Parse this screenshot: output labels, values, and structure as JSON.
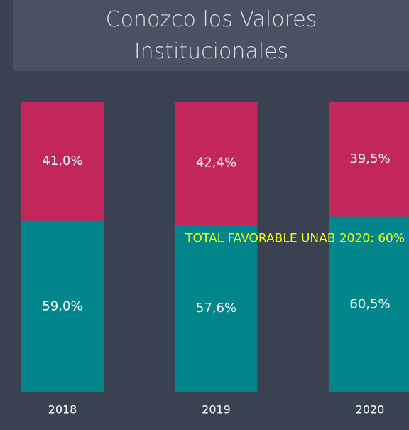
{
  "chart_data": {
    "type": "stacked_bar",
    "title": "Conozco los Valores Institucionales",
    "categories": [
      "2018",
      "2019",
      "2020"
    ],
    "series": [
      {
        "color": "#00868a",
        "values": [
          59.0,
          57.6,
          60.5
        ],
        "value_labels": [
          "59,0%",
          "57,6%",
          "60,5%"
        ]
      },
      {
        "color": "#c3265b",
        "values": [
          41.0,
          42.4,
          39.5
        ],
        "value_labels": [
          "41,0%",
          "42,4%",
          "39,5%"
        ]
      }
    ],
    "ylim": [
      0,
      100
    ],
    "reference_line": {
      "value": 60,
      "label": "TOTAL FAVORABLE UNAB 2020: 60%"
    }
  }
}
